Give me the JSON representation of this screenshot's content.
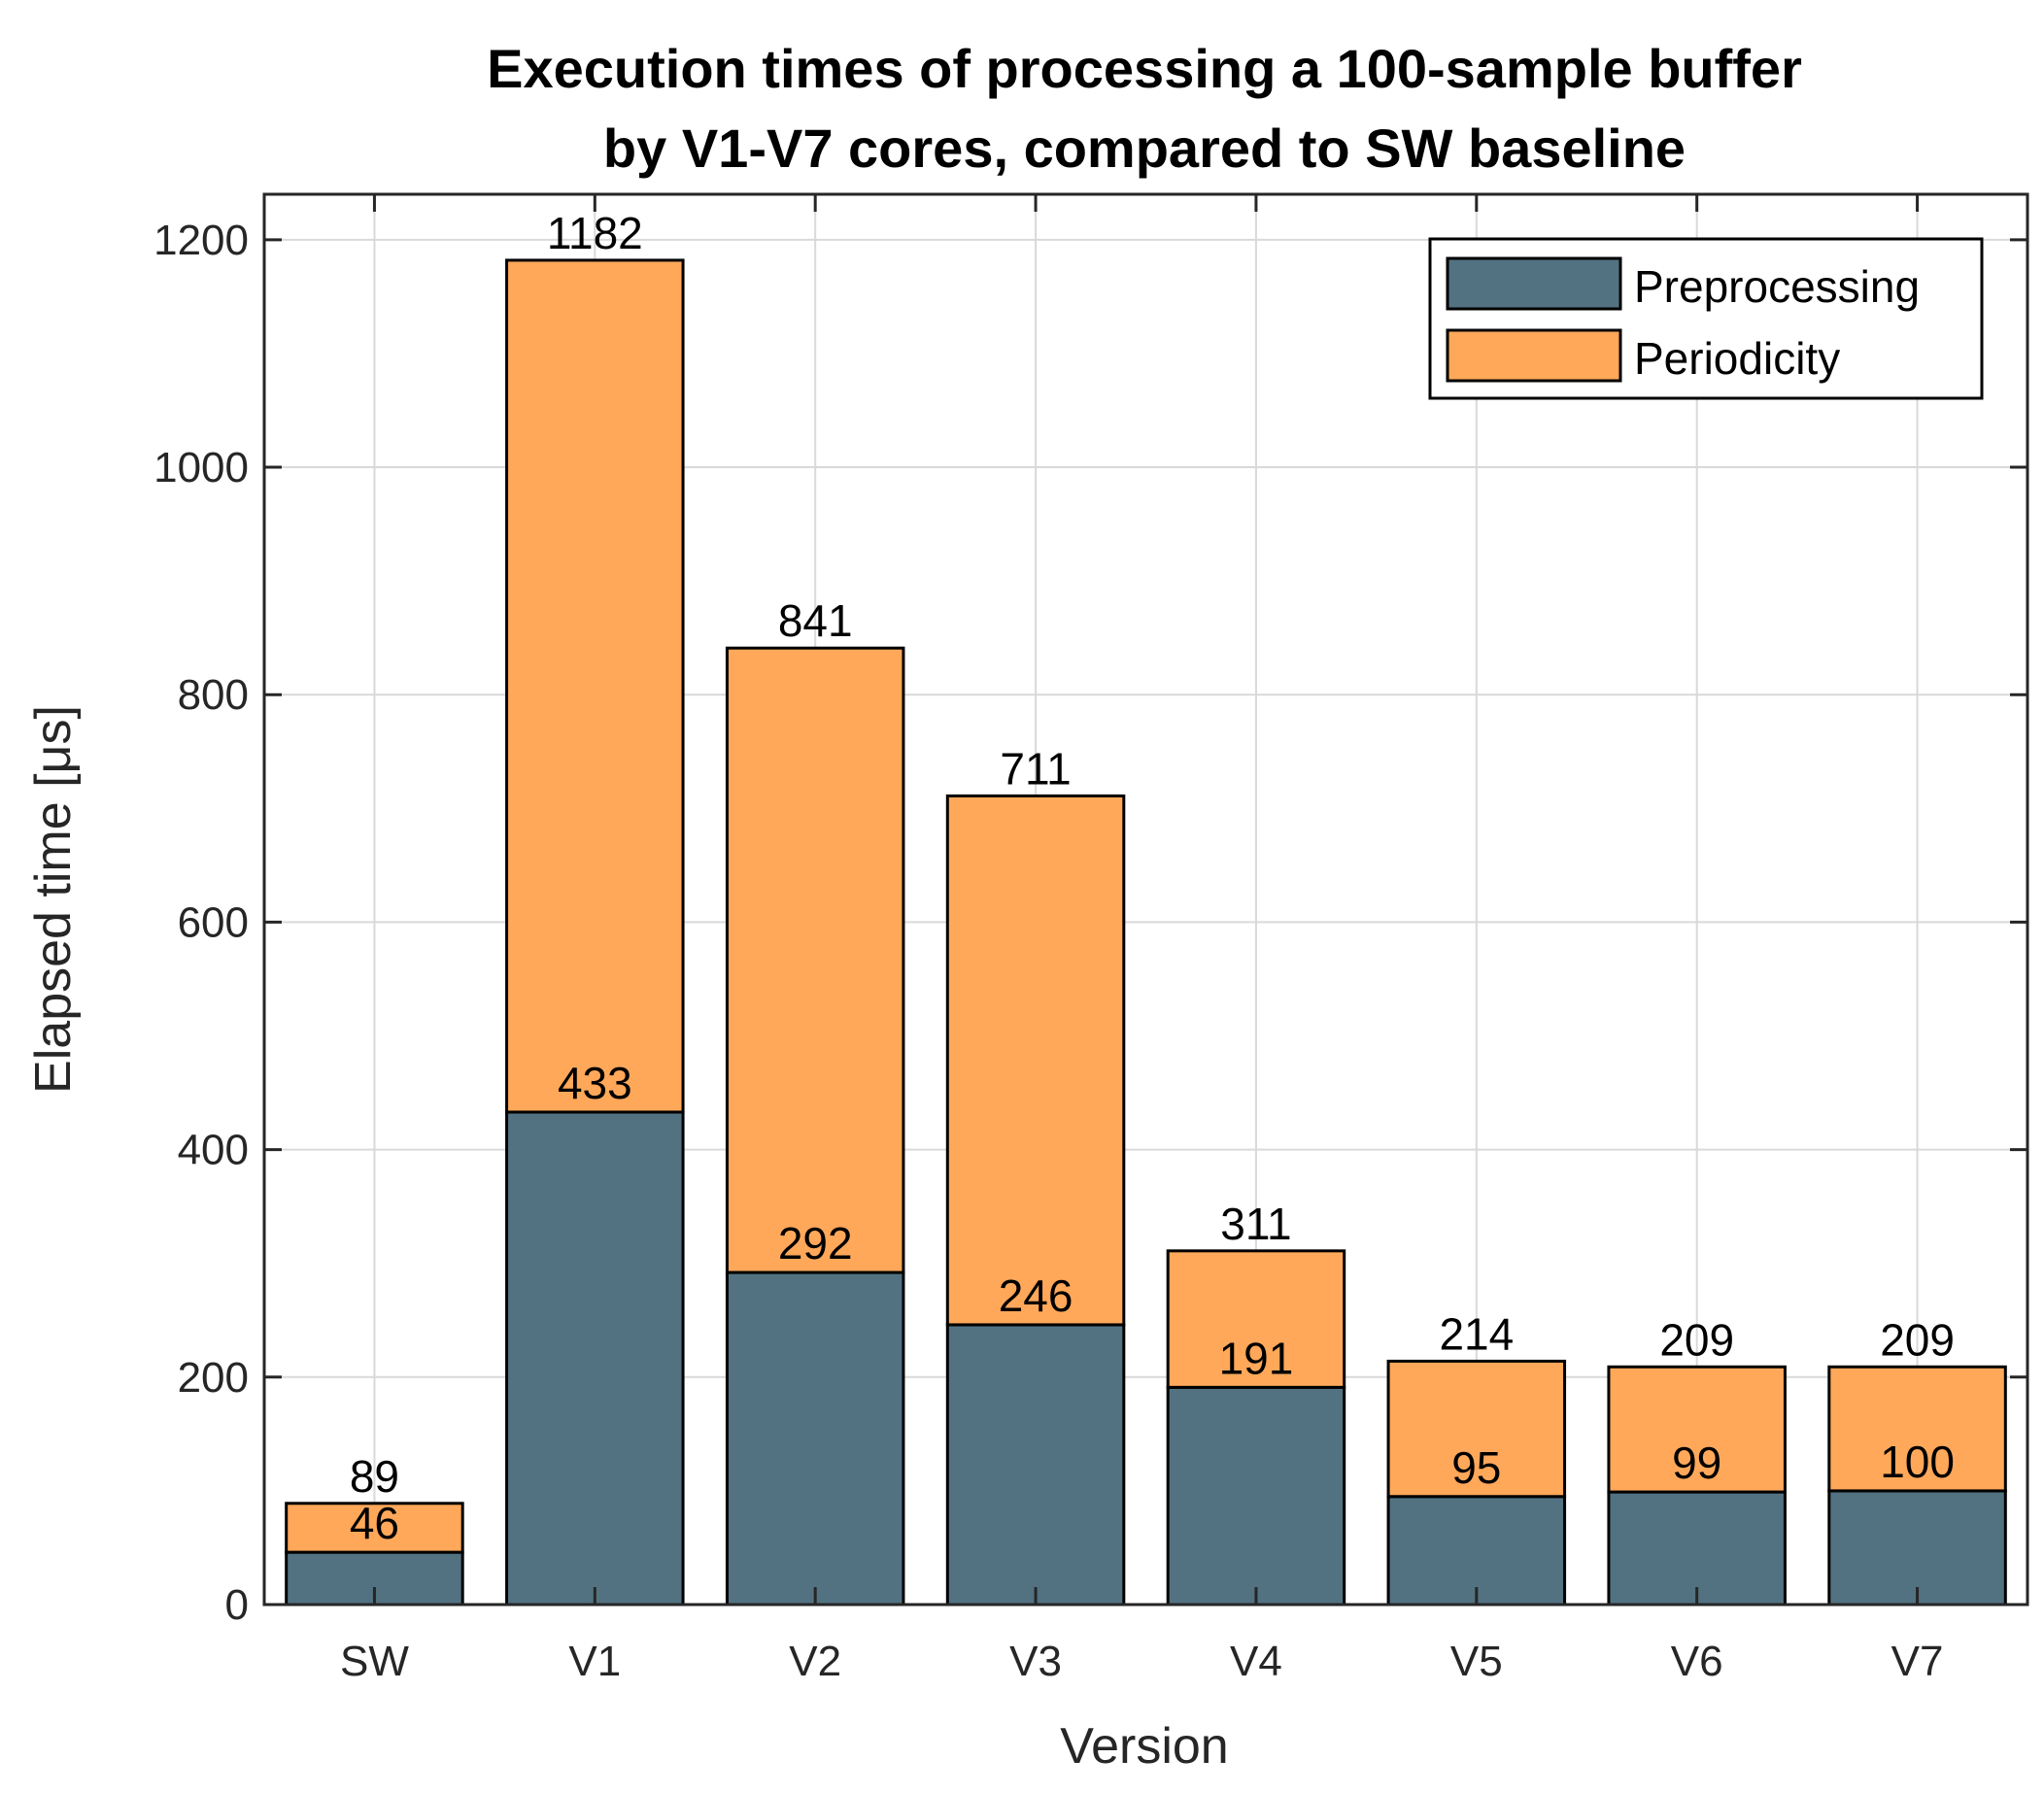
{
  "chart_data": {
    "type": "bar",
    "stacked": true,
    "title_lines": [
      "Execution times of processing a 100-sample buffer",
      "by V1-V7 cores, compared to SW baseline"
    ],
    "xlabel": "Version",
    "ylabel": "Elapsed time [μs]",
    "categories": [
      "SW",
      "V1",
      "V2",
      "V3",
      "V4",
      "V5",
      "V6",
      "V7"
    ],
    "ylim": [
      0,
      1240
    ],
    "yticks": [
      0,
      200,
      400,
      600,
      800,
      1000,
      1200
    ],
    "grid": true,
    "legend_position": "top-right",
    "series": [
      {
        "name": "Preprocessing",
        "color": "#527282",
        "values": [
          46,
          433,
          292,
          246,
          191,
          95,
          99,
          100
        ]
      },
      {
        "name": "Periodicity",
        "color": "#FFA85A",
        "values": [
          43,
          749,
          549,
          465,
          120,
          119,
          110,
          109
        ]
      }
    ],
    "preprocessing_labels": [
      "46",
      "433",
      "292",
      "246",
      "191",
      "95",
      "99",
      "100"
    ],
    "total_labels": [
      "89",
      "1182",
      "841",
      "711",
      "311",
      "214",
      "209",
      "209"
    ]
  }
}
